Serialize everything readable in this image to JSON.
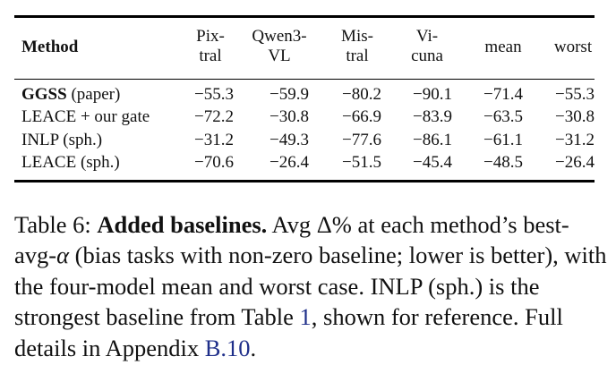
{
  "table": {
    "headers": {
      "method": "Method",
      "pixtral": [
        "Pix-",
        "tral"
      ],
      "qwen": [
        "Qwen3-",
        "VL"
      ],
      "mistral": [
        "Mis-",
        "tral"
      ],
      "vicuna": [
        "Vi-",
        "cuna"
      ],
      "mean": "mean",
      "worst": "worst"
    },
    "rows": [
      {
        "name_bold": "GGSS",
        "name_rest": " (paper)",
        "values": [
          "−55.3",
          "−59.9",
          "−80.2",
          "−90.1",
          "−71.4",
          "−55.3"
        ]
      },
      {
        "name_bold": "",
        "name_rest": "LEACE + our gate",
        "values": [
          "−72.2",
          "−30.8",
          "−66.9",
          "−83.9",
          "−63.5",
          "−30.8"
        ]
      },
      {
        "name_bold": "",
        "name_rest": "INLP (sph.)",
        "values": [
          "−31.2",
          "−49.3",
          "−77.6",
          "−86.1",
          "−61.1",
          "−31.2"
        ]
      },
      {
        "name_bold": "",
        "name_rest": "LEACE (sph.)",
        "values": [
          "−70.6",
          "−26.4",
          "−51.5",
          "−45.4",
          "−48.5",
          "−26.4"
        ]
      }
    ]
  },
  "caption": {
    "label": "Table 6:",
    "title": "Added baselines.",
    "part1": " Avg Δ% at each method’s best-avg-",
    "alpha": "α",
    "part2": " (bias tasks with non-zero baseline; lower is better), with the four-model mean and worst case. INLP (sph.) is the strongest baseline from Table ",
    "ref1": "1",
    "part3": ", shown for reference. Full details in Appendix ",
    "ref2": "B.10",
    "part4": "."
  }
}
